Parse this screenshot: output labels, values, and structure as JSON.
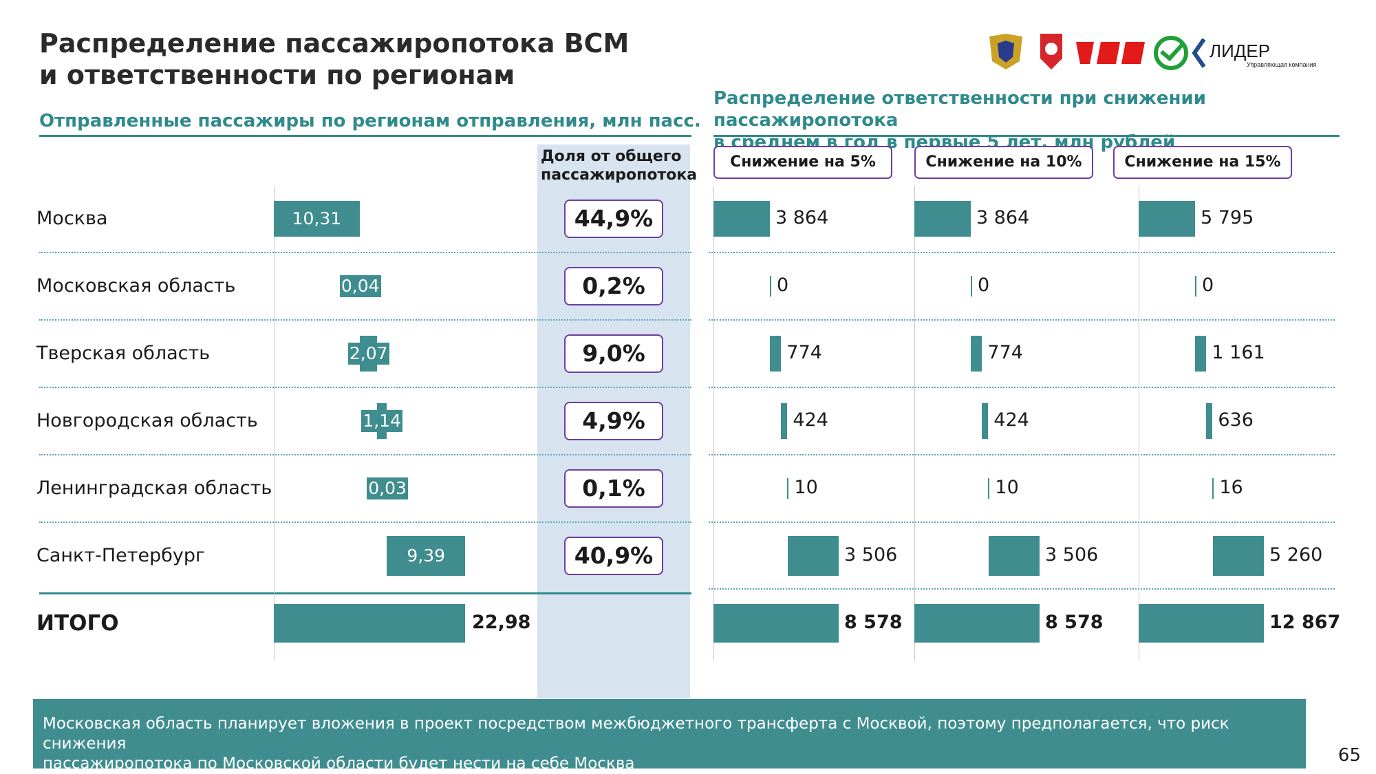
{
  "title_line1": "Распределение пассажиропотока ВСМ",
  "title_line2": "и ответственности по регионам",
  "left_subtitle": "Отправленные пассажиры по регионам отправления, млн пасс.",
  "right_subtitle_line1": "Распределение ответственности при снижении пассажиропотока",
  "right_subtitle_line2": "в среднем в год в первые 5 лет, млн рублей",
  "share_header_line1": "Доля от общего",
  "share_header_line2": "пассажиропотока",
  "logo_text": "ЛИДЕР",
  "logo_subtext": "Управляющая компания",
  "note_line1": "Московская область планирует вложения в проект посредством межбюджетного трансферта с Москвой, поэтому предполагается, что риск снижения",
  "note_line2": "пассажиропотока по Московской области будет нести на себе Москва",
  "page_number": "65",
  "colors": {
    "teal": "#3f8d8e",
    "accent": "#2f8a8c",
    "purple": "#6b3fa0",
    "panel": "#d7e3ef"
  },
  "chart_data": [
    {
      "type": "bar",
      "subtype": "waterfall",
      "categories": [
        "Москва",
        "Московская область",
        "Тверская область",
        "Новгородская область",
        "Ленинградская область",
        "Санкт-Петербург",
        "ИТОГО"
      ],
      "values": [
        10.31,
        0.04,
        2.07,
        1.14,
        0.03,
        9.39,
        22.98
      ],
      "value_labels": [
        "10,31",
        "0,04",
        "2,07",
        "1,14",
        "0,03",
        "9,39",
        "22,98"
      ],
      "shares": [
        "44,9%",
        "0,2%",
        "9,0%",
        "4,9%",
        "0,1%",
        "40,9%"
      ],
      "title": "Отправленные пассажиры по регионам отправления, млн пасс.",
      "xlim": [
        0,
        23
      ]
    },
    {
      "type": "bar",
      "subtype": "waterfall",
      "title": "Распределение ответственности при снижении пассажиропотока в среднем в год в первые 5 лет, млн рублей",
      "categories": [
        "Москва",
        "Московская область",
        "Тверская область",
        "Новгородская область",
        "Ленинградская область",
        "Санкт-Петербург",
        "ИТОГО"
      ],
      "series": [
        {
          "name": "Снижение на 5%",
          "values": [
            3864,
            0,
            774,
            424,
            10,
            3506,
            8578
          ],
          "labels": [
            "3 864",
            "0",
            "774",
            "424",
            "10",
            "3 506",
            "8 578"
          ]
        },
        {
          "name": "Снижение на 10%",
          "values": [
            3864,
            0,
            774,
            424,
            10,
            3506,
            8578
          ],
          "labels": [
            "3 864",
            "0",
            "774",
            "424",
            "10",
            "3 506",
            "8 578"
          ]
        },
        {
          "name": "Снижение на 15%",
          "values": [
            5795,
            0,
            1161,
            636,
            16,
            5260,
            12867
          ],
          "labels": [
            "5 795",
            "0",
            "1 161",
            "636",
            "16",
            "5 260",
            "12 867"
          ]
        }
      ]
    }
  ]
}
